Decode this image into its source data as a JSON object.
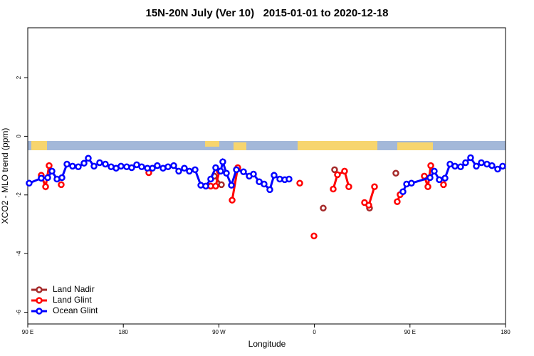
{
  "chart_data": {
    "type": "line",
    "title": "15N-20N July (Ver 10)   2015-01-01 to 2020-12-18",
    "x_label": "Longitude",
    "y_label": "XCO2 - MLO trend (ppm)",
    "xlim": [
      90,
      540
    ],
    "xticks": [
      {
        "value": 90,
        "label": "90 E"
      },
      180,
      {
        "value": 270,
        "label": "90 W"
      },
      {
        "value": 360,
        "label": "0"
      },
      {
        "value": 450,
        "label": "90 E"
      },
      {
        "value": 540,
        "label": "180"
      }
    ],
    "ylim": [
      -6.4,
      3.7
    ],
    "yticks": [
      -6,
      -4,
      -2,
      0,
      2
    ],
    "legend": "bottom-left",
    "series": [
      {
        "name": "Land Nadir",
        "color": "#a52a2a",
        "x": [
          265.7,
          272.4,
          320,
          368.3,
          374,
          379,
          395,
          411.9,
          424,
          436.7
        ],
        "values": [
          -1.36,
          -1.65,
          null,
          -2.45,
          null,
          -1.14,
          null,
          -2.45,
          null,
          -1.26
        ]
      },
      {
        "name": "Land Glint",
        "color": "#ff0000",
        "x": [
          102.7,
          106.8,
          110.1,
          116,
          121.5,
          160,
          204,
          230,
          262.3,
          267,
          270.4,
          276,
          282.5,
          287.8,
          317,
          346.2,
          353,
          359.6,
          368,
          377.7,
          381.7,
          388.4,
          392.4,
          400,
          407.2,
          411.2,
          416.6,
          427,
          438,
          440.7,
          452,
          463.5,
          466.9,
          469.6,
          475,
          481.6
        ],
        "values": [
          -1.33,
          -1.72,
          -1.0,
          null,
          -1.65,
          null,
          -1.24,
          null,
          -1.7,
          -1.7,
          -1.19,
          null,
          -2.18,
          -1.07,
          null,
          -1.6,
          null,
          -3.4,
          null,
          -1.8,
          -1.31,
          -1.19,
          -1.72,
          null,
          -2.26,
          -2.35,
          -1.72,
          null,
          -2.23,
          -1.99,
          null,
          -1.36,
          -1.72,
          -1.0,
          null,
          -1.65
        ]
      },
      {
        "name": "Ocean Glint",
        "color": "#0000ff",
        "x": [
          91.3,
          102.7,
          108.8,
          112.8,
          117.5,
          122.2,
          126.9,
          132.2,
          137.6,
          143.0,
          147.0,
          152.4,
          157.7,
          163.1,
          168.5,
          173.2,
          177.8,
          183.2,
          187.9,
          192.6,
          197.3,
          202.7,
          207.4,
          212.0,
          217.4,
          222.1,
          227.5,
          232.2,
          237.5,
          242.2,
          247.6,
          253.0,
          257.7,
          262.3,
          267.0,
          271.7,
          273.7,
          277.1,
          281.8,
          286.5,
          293.2,
          298.6,
          302.6,
          308.0,
          312.6,
          318.0,
          322.0,
          327.4,
          332.1,
          336.1,
          390,
          443.4,
          446.8,
          451.4,
          468.9,
          472.9,
          477.6,
          483.0,
          487.7,
          492.4,
          497.7,
          502.4,
          507.1,
          512.5,
          517.2,
          522.5,
          527.2,
          532.6,
          537.3
        ],
        "values": [
          -1.6,
          -1.43,
          -1.41,
          -1.19,
          -1.46,
          -1.41,
          -0.95,
          -1.02,
          -1.04,
          -0.92,
          -0.75,
          -1.02,
          -0.9,
          -0.95,
          -1.04,
          -1.09,
          -1.02,
          -1.04,
          -1.07,
          -0.97,
          -1.04,
          -1.09,
          -1.09,
          -1.0,
          -1.09,
          -1.04,
          -1.0,
          -1.19,
          -1.09,
          -1.19,
          -1.14,
          -1.67,
          -1.7,
          -1.46,
          -1.07,
          -1.19,
          -0.87,
          -1.26,
          -1.67,
          -1.14,
          -1.21,
          -1.36,
          -1.29,
          -1.55,
          -1.63,
          -1.82,
          -1.33,
          -1.46,
          -1.48,
          -1.46,
          null,
          -1.89,
          -1.63,
          -1.6,
          -1.41,
          -1.19,
          -1.48,
          -1.43,
          -0.95,
          -1.02,
          -1.04,
          -0.9,
          -0.73,
          -1.02,
          -0.9,
          -0.95,
          -1.0,
          -1.12,
          -1.02
        ]
      }
    ]
  }
}
